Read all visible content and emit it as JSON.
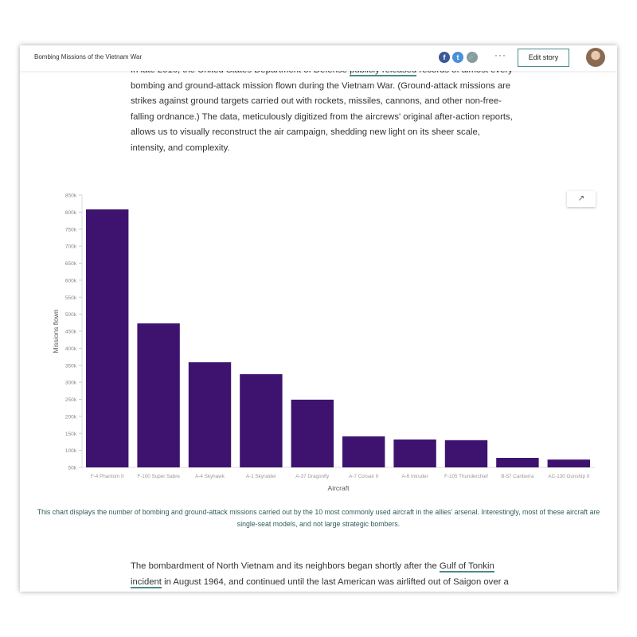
{
  "header": {
    "title": "Bombing Missions of the Vietnam War",
    "edit_label": "Edit story",
    "more_label": "···",
    "share": [
      {
        "icon": "facebook-icon",
        "glyph": "f",
        "color": "#3b5998"
      },
      {
        "icon": "twitter-icon",
        "glyph": "t",
        "color": "#4a90d9"
      },
      {
        "icon": "link-icon",
        "glyph": "🔗",
        "color": "#8a9a9a"
      }
    ]
  },
  "intro": {
    "before": "In late 2016, the United States Department of Defense ",
    "link": "publicly released",
    "after": " records of almost every bombing and ground-attack mission flown during the Vietnam War. (Ground-attack missions are strikes against ground targets carried out with rockets, missiles, cannons, and other non-free-falling ordnance.) The data, meticulously digitized from the aircrews' original after-action reports, allows us to visually reconstruct the air campaign, shedding new light on its sheer scale, intensity, and complexity."
  },
  "popout_icon": "external-link-icon",
  "chart_data": {
    "type": "bar",
    "xlabel": "Aircraft",
    "ylabel": "Missions flown",
    "ylim": [
      50000,
      850000
    ],
    "yticks": [
      "50k",
      "100k",
      "150k",
      "200k",
      "250k",
      "300k",
      "350k",
      "400k",
      "450k",
      "500k",
      "550k",
      "600k",
      "650k",
      "700k",
      "750k",
      "800k",
      "850k"
    ],
    "categories": [
      "F-4 Phantom II",
      "F-100 Super Sabre",
      "A-4 Skyhawk",
      "A-1 Skyraider",
      "A-37 Dragonfly",
      "A-7 Corsair II",
      "A-6 Intruder",
      "F-105 Thunderchief",
      "B-57 Canberra",
      "AC-130 Gunship II"
    ],
    "values": [
      808000,
      473000,
      359000,
      324000,
      249000,
      141000,
      132000,
      130000,
      78000,
      73000
    ],
    "color": "#3e1370",
    "grid": false
  },
  "caption": "This chart displays the number of bombing and ground-attack missions carried out by the 10 most commonly used aircraft in the allies' arsenal. Interestingly, most of these aircraft are single-seat models, and not large strategic bombers.",
  "body2": {
    "before": "The bombardment of North Vietnam and its neighbors began shortly after the ",
    "link": "Gulf of Tonkin incident",
    "after": " in August 1964, and continued until the last American was airlifted out of Saigon over a"
  }
}
